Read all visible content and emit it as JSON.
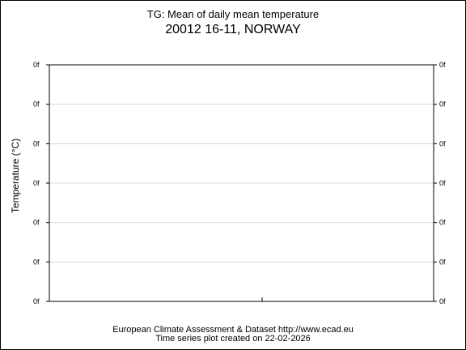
{
  "chart_data": {
    "type": "line",
    "title": "TG: Mean of daily mean temperature",
    "subtitle": "20012 16-11, NORWAY",
    "ylabel": "Temperature (°C)",
    "xlabel": "",
    "y_ticks_left": [
      "0f",
      "0f",
      "0f",
      "0f",
      "0f",
      "0f",
      "0f"
    ],
    "y_ticks_right": [
      "0f",
      "0f",
      "0f",
      "0f",
      "0f",
      "0f",
      "0f"
    ],
    "grid": true,
    "series": []
  },
  "footer": {
    "line1": "European Climate Assessment & Dataset  http://www.ecad.eu",
    "line2": "Time series plot created on 22-02-2026"
  }
}
